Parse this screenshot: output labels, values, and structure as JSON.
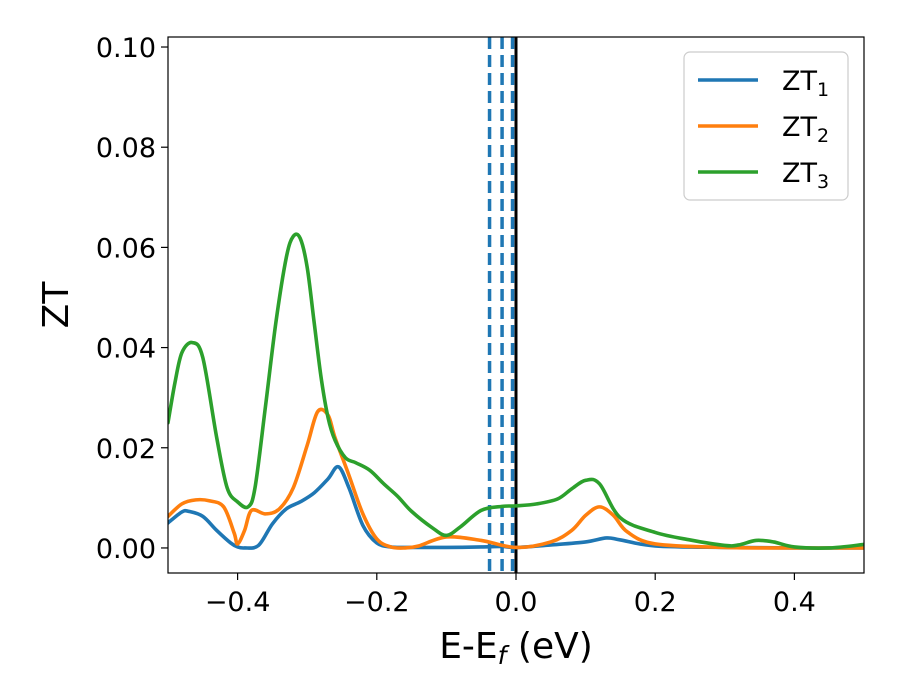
{
  "chart_data": {
    "type": "line",
    "xlabel": {
      "main": "E-E",
      "sub": "f",
      "suffix": " (eV)"
    },
    "ylabel": "ZT",
    "xlim": [
      -0.5,
      0.5
    ],
    "ylim": [
      -0.005,
      0.102
    ],
    "xticks": [
      -0.4,
      -0.2,
      0.0,
      0.2,
      0.4
    ],
    "xtick_labels": [
      "−0.4",
      "−0.2",
      "0.0",
      "0.2",
      "0.4"
    ],
    "yticks": [
      0.0,
      0.02,
      0.04,
      0.06,
      0.08,
      0.1
    ],
    "ytick_labels": [
      "0.00",
      "0.02",
      "0.04",
      "0.06",
      "0.08",
      "0.10"
    ],
    "grid": false,
    "legend_position": "top-right",
    "vlines": [
      {
        "x": -0.038,
        "style": "dashed",
        "color": "#1f77b4"
      },
      {
        "x": -0.02,
        "style": "dashed",
        "color": "#1f77b4"
      },
      {
        "x": -0.005,
        "style": "dashed",
        "color": "#1f77b4"
      },
      {
        "x": 0.0,
        "style": "solid",
        "color": "#000000"
      }
    ],
    "series": [
      {
        "name": "ZT",
        "sub": "1",
        "color": "#1f77b4",
        "x": [
          -0.5,
          -0.48,
          -0.47,
          -0.45,
          -0.43,
          -0.41,
          -0.4,
          -0.39,
          -0.37,
          -0.35,
          -0.33,
          -0.31,
          -0.29,
          -0.27,
          -0.255,
          -0.24,
          -0.22,
          -0.2,
          -0.18,
          -0.16,
          -0.14,
          -0.1,
          -0.05,
          -0.02,
          0.0,
          0.05,
          0.1,
          0.13,
          0.15,
          0.2,
          0.3,
          0.4,
          0.5
        ],
        "y": [
          0.005,
          0.0072,
          0.0073,
          0.0063,
          0.0035,
          0.001,
          0.0002,
          0.0,
          0.0005,
          0.0048,
          0.0078,
          0.0092,
          0.011,
          0.0138,
          0.0162,
          0.012,
          0.0045,
          0.001,
          0.0002,
          0.0001,
          0.0001,
          0.0001,
          0.0002,
          0.0003,
          0.0001,
          0.0006,
          0.0012,
          0.002,
          0.0016,
          0.0004,
          0.0001,
          0.0,
          0.0
        ]
      },
      {
        "name": "ZT",
        "sub": "2",
        "color": "#ff7f0e",
        "x": [
          -0.5,
          -0.48,
          -0.46,
          -0.44,
          -0.42,
          -0.405,
          -0.4,
          -0.39,
          -0.38,
          -0.36,
          -0.34,
          -0.32,
          -0.3,
          -0.285,
          -0.27,
          -0.26,
          -0.24,
          -0.22,
          -0.2,
          -0.18,
          -0.16,
          -0.14,
          -0.1,
          -0.05,
          0.0,
          0.05,
          0.08,
          0.1,
          0.12,
          0.14,
          0.16,
          0.2,
          0.3,
          0.4,
          0.5
        ],
        "y": [
          0.0063,
          0.0088,
          0.0096,
          0.0094,
          0.0082,
          0.003,
          0.0008,
          0.0035,
          0.0075,
          0.0068,
          0.0078,
          0.012,
          0.0205,
          0.0272,
          0.0265,
          0.022,
          0.0145,
          0.0068,
          0.0018,
          0.0002,
          0.0,
          0.0004,
          0.0022,
          0.0015,
          0.0001,
          0.0012,
          0.0035,
          0.0065,
          0.0082,
          0.0065,
          0.0032,
          0.0008,
          0.0001,
          0.0,
          0.0
        ]
      },
      {
        "name": "ZT",
        "sub": "3",
        "color": "#2ca02c",
        "x": [
          -0.5,
          -0.49,
          -0.48,
          -0.465,
          -0.45,
          -0.43,
          -0.415,
          -0.4,
          -0.385,
          -0.375,
          -0.36,
          -0.345,
          -0.33,
          -0.32,
          -0.31,
          -0.3,
          -0.29,
          -0.28,
          -0.27,
          -0.26,
          -0.245,
          -0.23,
          -0.21,
          -0.19,
          -0.17,
          -0.15,
          -0.12,
          -0.1,
          -0.08,
          -0.05,
          -0.02,
          0.0,
          0.03,
          0.06,
          0.08,
          0.1,
          0.12,
          0.15,
          0.2,
          0.25,
          0.3,
          0.32,
          0.345,
          0.37,
          0.4,
          0.45,
          0.5
        ],
        "y": [
          0.025,
          0.033,
          0.039,
          0.041,
          0.038,
          0.022,
          0.012,
          0.0092,
          0.0082,
          0.012,
          0.0282,
          0.045,
          0.058,
          0.0622,
          0.0618,
          0.056,
          0.045,
          0.034,
          0.026,
          0.0215,
          0.018,
          0.017,
          0.0155,
          0.0128,
          0.0103,
          0.0073,
          0.004,
          0.0025,
          0.0042,
          0.0075,
          0.0083,
          0.0084,
          0.0088,
          0.0098,
          0.0118,
          0.0135,
          0.0128,
          0.006,
          0.0031,
          0.0016,
          0.0005,
          0.0006,
          0.0015,
          0.0012,
          0.0002,
          0.0,
          0.0007
        ]
      }
    ]
  }
}
